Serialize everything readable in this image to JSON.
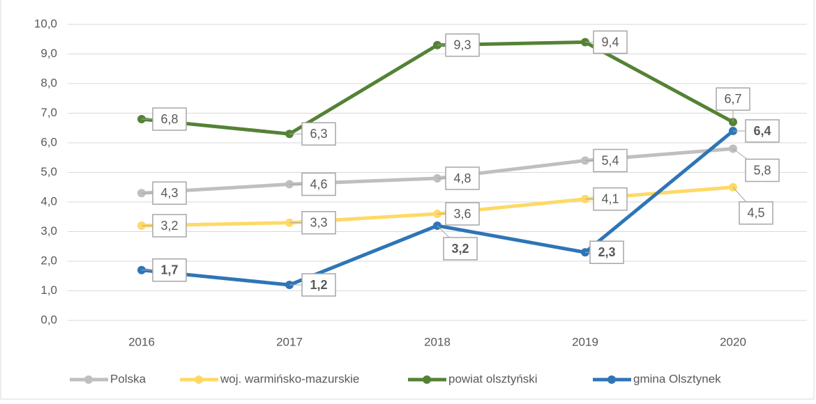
{
  "chart_data": {
    "type": "line",
    "categories": [
      "2016",
      "2017",
      "2018",
      "2019",
      "2020"
    ],
    "ylim": [
      0,
      10
    ],
    "yticks": [
      {
        "value": 0,
        "label": "0,0"
      },
      {
        "value": 1,
        "label": "1,0"
      },
      {
        "value": 2,
        "label": "2,0"
      },
      {
        "value": 3,
        "label": "3,0"
      },
      {
        "value": 4,
        "label": "4,0"
      },
      {
        "value": 5,
        "label": "5,0"
      },
      {
        "value": 6,
        "label": "6,0"
      },
      {
        "value": 7,
        "label": "7,0"
      },
      {
        "value": 8,
        "label": "8,0"
      },
      {
        "value": 9,
        "label": "9,0"
      },
      {
        "value": 10,
        "label": "10,0"
      }
    ],
    "grid": true,
    "legend": "bottom",
    "series": [
      {
        "name": "Polska",
        "color": "#bfbfbf",
        "values": [
          4.3,
          4.6,
          4.8,
          5.4,
          5.8
        ],
        "value_labels": [
          "4,3",
          "4,6",
          "4,8",
          "5,4",
          "5,8"
        ]
      },
      {
        "name": "woj. warmińsko-mazurskie",
        "color": "#ffd966",
        "values": [
          3.2,
          3.3,
          3.6,
          4.1,
          4.5
        ],
        "value_labels": [
          "3,2",
          "3,3",
          "3,6",
          "4,1",
          "4,5"
        ]
      },
      {
        "name": "powiat olsztyński",
        "color": "#548235",
        "values": [
          6.8,
          6.3,
          9.3,
          9.4,
          6.7
        ],
        "value_labels": [
          "6,8",
          "6,3",
          "9,3",
          "9,4",
          "6,7"
        ]
      },
      {
        "name": "gmina Olsztynek",
        "color": "#2e75b6",
        "values": [
          1.7,
          1.2,
          3.2,
          2.3,
          6.4
        ],
        "value_labels": [
          "1,7",
          "1,2",
          "3,2",
          "2,3",
          "6,4"
        ]
      }
    ]
  }
}
